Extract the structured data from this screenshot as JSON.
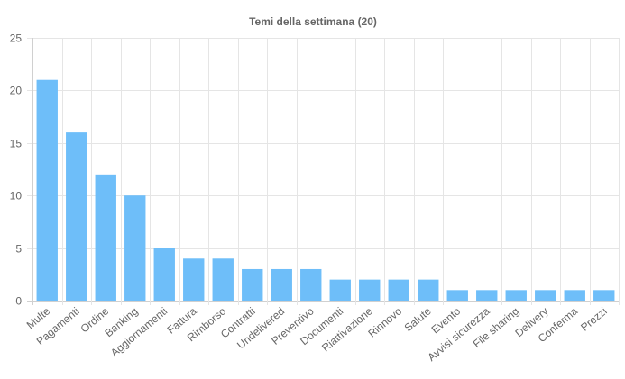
{
  "chart_data": {
    "type": "bar",
    "title": "Temi della settimana (20)",
    "xlabel": "",
    "ylabel": "",
    "categories": [
      "Multe",
      "Pagamenti",
      "Ordine",
      "Banking",
      "Aggiornamenti",
      "Fattura",
      "Rimborso",
      "Contratti",
      "Undelivered",
      "Preventivo",
      "Documenti",
      "Riattivazione",
      "Rinnovo",
      "Salute",
      "Evento",
      "Avvisi sicurezza",
      "File sharing",
      "Delivery",
      "Conferma",
      "Prezzi"
    ],
    "values": [
      21,
      16,
      12,
      10,
      5,
      4,
      4,
      3,
      3,
      3,
      2,
      2,
      2,
      2,
      1,
      1,
      1,
      1,
      1,
      1
    ],
    "ylim": [
      0,
      25
    ],
    "yticks": [
      "0",
      "5",
      "10",
      "15",
      "20",
      "25"
    ],
    "grid": true,
    "legend": "none",
    "bar_color": "#6ebef9",
    "grid_color": "#e5e5e5",
    "text_color": "#666666"
  }
}
